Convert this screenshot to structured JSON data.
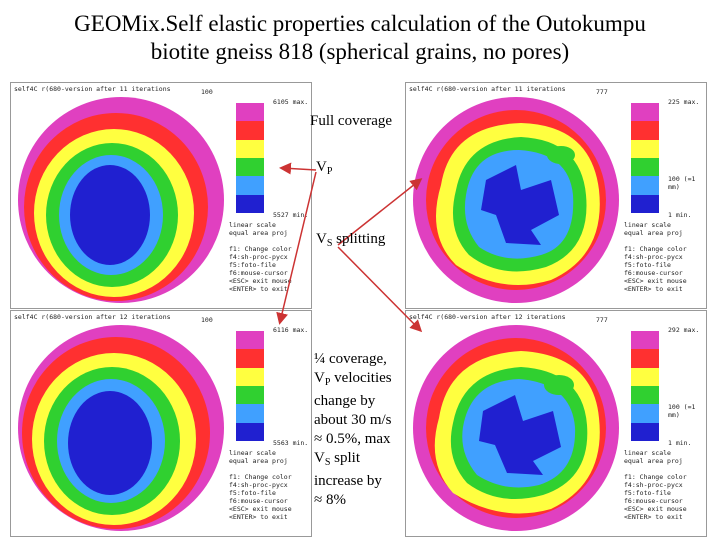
{
  "title": {
    "line1": "GEOMix.Self elastic properties calculation of the Outokumpu",
    "line2": "biotite gneiss 818 (spherical grains, no pores)"
  },
  "labels": {
    "full_coverage": "Full coverage",
    "vp_main": "V",
    "vp_sub": "P",
    "vs_main": "V",
    "vs_sub": "S",
    "vs_rest": " splitting",
    "quarter_line1": "¼ coverage,",
    "quarter_vp_main": "V",
    "quarter_vp_sub": "P",
    "quarter_vp_rest": " velocities",
    "quarter_line3": "change by",
    "quarter_line4": "about 30 m/s",
    "quarter_line5": "≈ 0.5%, max",
    "quarter_vs_main": "V",
    "quarter_vs_sub": "S",
    "quarter_vs_rest": " split",
    "quarter_line7": "increase by",
    "quarter_line8": "≈ 8%"
  },
  "panels": {
    "top_left": {
      "header": "self4C r(680-version after 11 iterations",
      "top": "100",
      "max": "6105 max.",
      "min": "5527 min.",
      "help": "linear scale\nequal area proj\n\nf1: Change color\nf4:sh-proc-pycx\nf5:foto-file\nf6:mouse-cursor\n<ESC> exit mouse\n<ENTER> to exit"
    },
    "top_right": {
      "header": "self4C r(680-version after 11 iterations",
      "top": "777",
      "max": "225 max.",
      "one": "100 (=1 mm)",
      "min": "1 min.",
      "help": "linear scale\nequal area proj\n\nf1: Change color\nf4:sh-proc-pycx\nf5:foto-file\nf6:mouse-cursor\n<ESC> exit mouse\n<ENTER> to exit"
    },
    "bottom_left": {
      "header": "self4C r(680-version after 12 iterations",
      "top": "100",
      "max": "6116 max.",
      "min": "5563 min.",
      "help": "linear scale\nequal area proj\n\nf1: Change color\nf4:sh-proc-pycx\nf5:foto-file\nf6:mouse-cursor\n<ESC> exit mouse\n<ENTER> to exit"
    },
    "bottom_right": {
      "header": "self4C r(680-version after 12 iterations",
      "top": "777",
      "max": "292 max.",
      "one": "100 (=1 mm)",
      "min": "1 min.",
      "help": "linear scale\nequal area proj\n\nf1: Change color\nf4:sh-proc-pycx\nf5:foto-file\nf6:mouse-cursor\n<ESC> exit mouse\n<ENTER> to exit"
    }
  },
  "colors": {
    "magenta": "#e040c0",
    "red": "#ff3030",
    "yellow": "#ffff40",
    "green": "#30d030",
    "lightblue": "#40a0ff",
    "blue": "#2020d0",
    "arrow": "#cc3333"
  }
}
